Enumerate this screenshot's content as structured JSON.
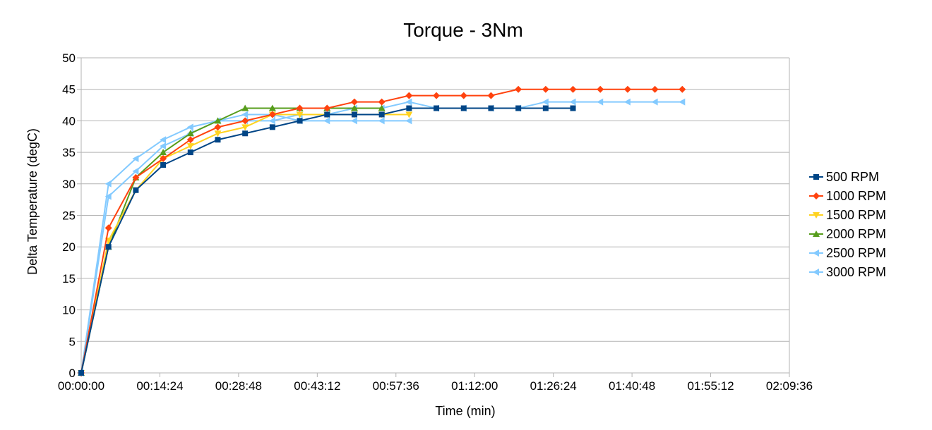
{
  "chart_data": {
    "type": "line",
    "title": "Torque - 3Nm",
    "xlabel": "Time (min)",
    "ylabel": "Delta Temperature (degC)",
    "xlim_seconds": [
      0,
      7776
    ],
    "x_ticks": [
      "00:00:00",
      "00:14:24",
      "00:28:48",
      "00:43:12",
      "00:57:36",
      "01:12:00",
      "01:26:24",
      "01:40:48",
      "01:55:12",
      "02:09:36"
    ],
    "ylim": [
      0,
      50
    ],
    "y_ticks": [
      0,
      5,
      10,
      15,
      20,
      25,
      30,
      35,
      40,
      45,
      50
    ],
    "grid": "horizontal",
    "legend_position": "right",
    "series": [
      {
        "name": "500 RPM",
        "color": "#004586",
        "marker": "square",
        "x": [
          "00:00:00",
          "00:05:00",
          "00:10:00",
          "00:15:00",
          "00:20:00",
          "00:25:00",
          "00:30:00",
          "00:35:00",
          "00:40:00",
          "00:45:00",
          "00:50:00",
          "00:55:00",
          "01:00:00",
          "01:05:00",
          "01:10:00",
          "01:15:00",
          "01:20:00",
          "01:25:00",
          "01:30:00"
        ],
        "values": [
          0,
          20,
          29,
          33,
          35,
          37,
          38,
          39,
          40,
          41,
          41,
          41,
          42,
          42,
          42,
          42,
          42,
          42,
          42
        ]
      },
      {
        "name": "1000 RPM",
        "color": "#ff420e",
        "marker": "diamond",
        "x": [
          "00:00:00",
          "00:05:00",
          "00:10:00",
          "00:15:00",
          "00:20:00",
          "00:25:00",
          "00:30:00",
          "00:35:00",
          "00:40:00",
          "00:45:00",
          "00:50:00",
          "00:55:00",
          "01:00:00",
          "01:05:00",
          "01:10:00",
          "01:15:00",
          "01:20:00",
          "01:25:00",
          "01:30:00",
          "01:35:00",
          "01:40:00",
          "01:45:00",
          "01:50:00"
        ],
        "values": [
          0,
          23,
          31,
          34,
          37,
          39,
          40,
          41,
          42,
          42,
          43,
          43,
          44,
          44,
          44,
          44,
          45,
          45,
          45,
          45,
          45,
          45,
          45
        ]
      },
      {
        "name": "1500 RPM",
        "color": "#ffd320",
        "marker": "triangle-down",
        "x": [
          "00:00:00",
          "00:05:00",
          "00:10:00",
          "00:15:00",
          "00:20:00",
          "00:25:00",
          "00:30:00",
          "00:35:00",
          "00:40:00",
          "00:45:00",
          "00:50:00",
          "00:55:00",
          "01:00:00"
        ],
        "values": [
          0,
          21,
          29,
          34,
          36,
          38,
          39,
          41,
          41,
          41,
          41,
          41,
          41
        ]
      },
      {
        "name": "2000 RPM",
        "color": "#579d1c",
        "marker": "triangle-up",
        "x": [
          "00:00:00",
          "00:05:00",
          "00:10:00",
          "00:15:00",
          "00:20:00",
          "00:25:00",
          "00:30:00",
          "00:35:00",
          "00:40:00",
          "00:45:00",
          "00:50:00",
          "00:55:00"
        ],
        "values": [
          0,
          20,
          31,
          35,
          38,
          40,
          42,
          42,
          42,
          42,
          42,
          42
        ]
      },
      {
        "name": "2500 RPM",
        "color": "#83caff",
        "marker": "triangle-left",
        "x": [
          "00:00:00",
          "00:05:00",
          "00:10:00",
          "00:15:00",
          "00:20:00",
          "00:25:00",
          "00:30:00",
          "00:35:00",
          "00:40:00",
          "00:45:00",
          "00:50:00",
          "00:55:00",
          "01:00:00"
        ],
        "values": [
          0,
          28,
          32,
          36,
          38,
          40,
          41,
          41,
          40,
          40,
          40,
          40,
          40
        ]
      },
      {
        "name": "3000 RPM",
        "color": "#83caff",
        "marker": "triangle-left",
        "x": [
          "00:00:00",
          "00:05:00",
          "00:10:00",
          "00:15:00",
          "00:20:00",
          "00:25:00",
          "00:30:00",
          "00:35:00",
          "00:40:00",
          "00:45:00",
          "00:50:00",
          "00:55:00",
          "01:00:00",
          "01:05:00",
          "01:10:00",
          "01:15:00",
          "01:20:00",
          "01:25:00",
          "01:30:00",
          "01:35:00",
          "01:40:00",
          "01:45:00",
          "01:50:00"
        ],
        "values": [
          0,
          30,
          34,
          37,
          39,
          40,
          40,
          40,
          41,
          41,
          42,
          42,
          43,
          42,
          42,
          42,
          42,
          43,
          43,
          43,
          43,
          43,
          43
        ]
      }
    ]
  }
}
